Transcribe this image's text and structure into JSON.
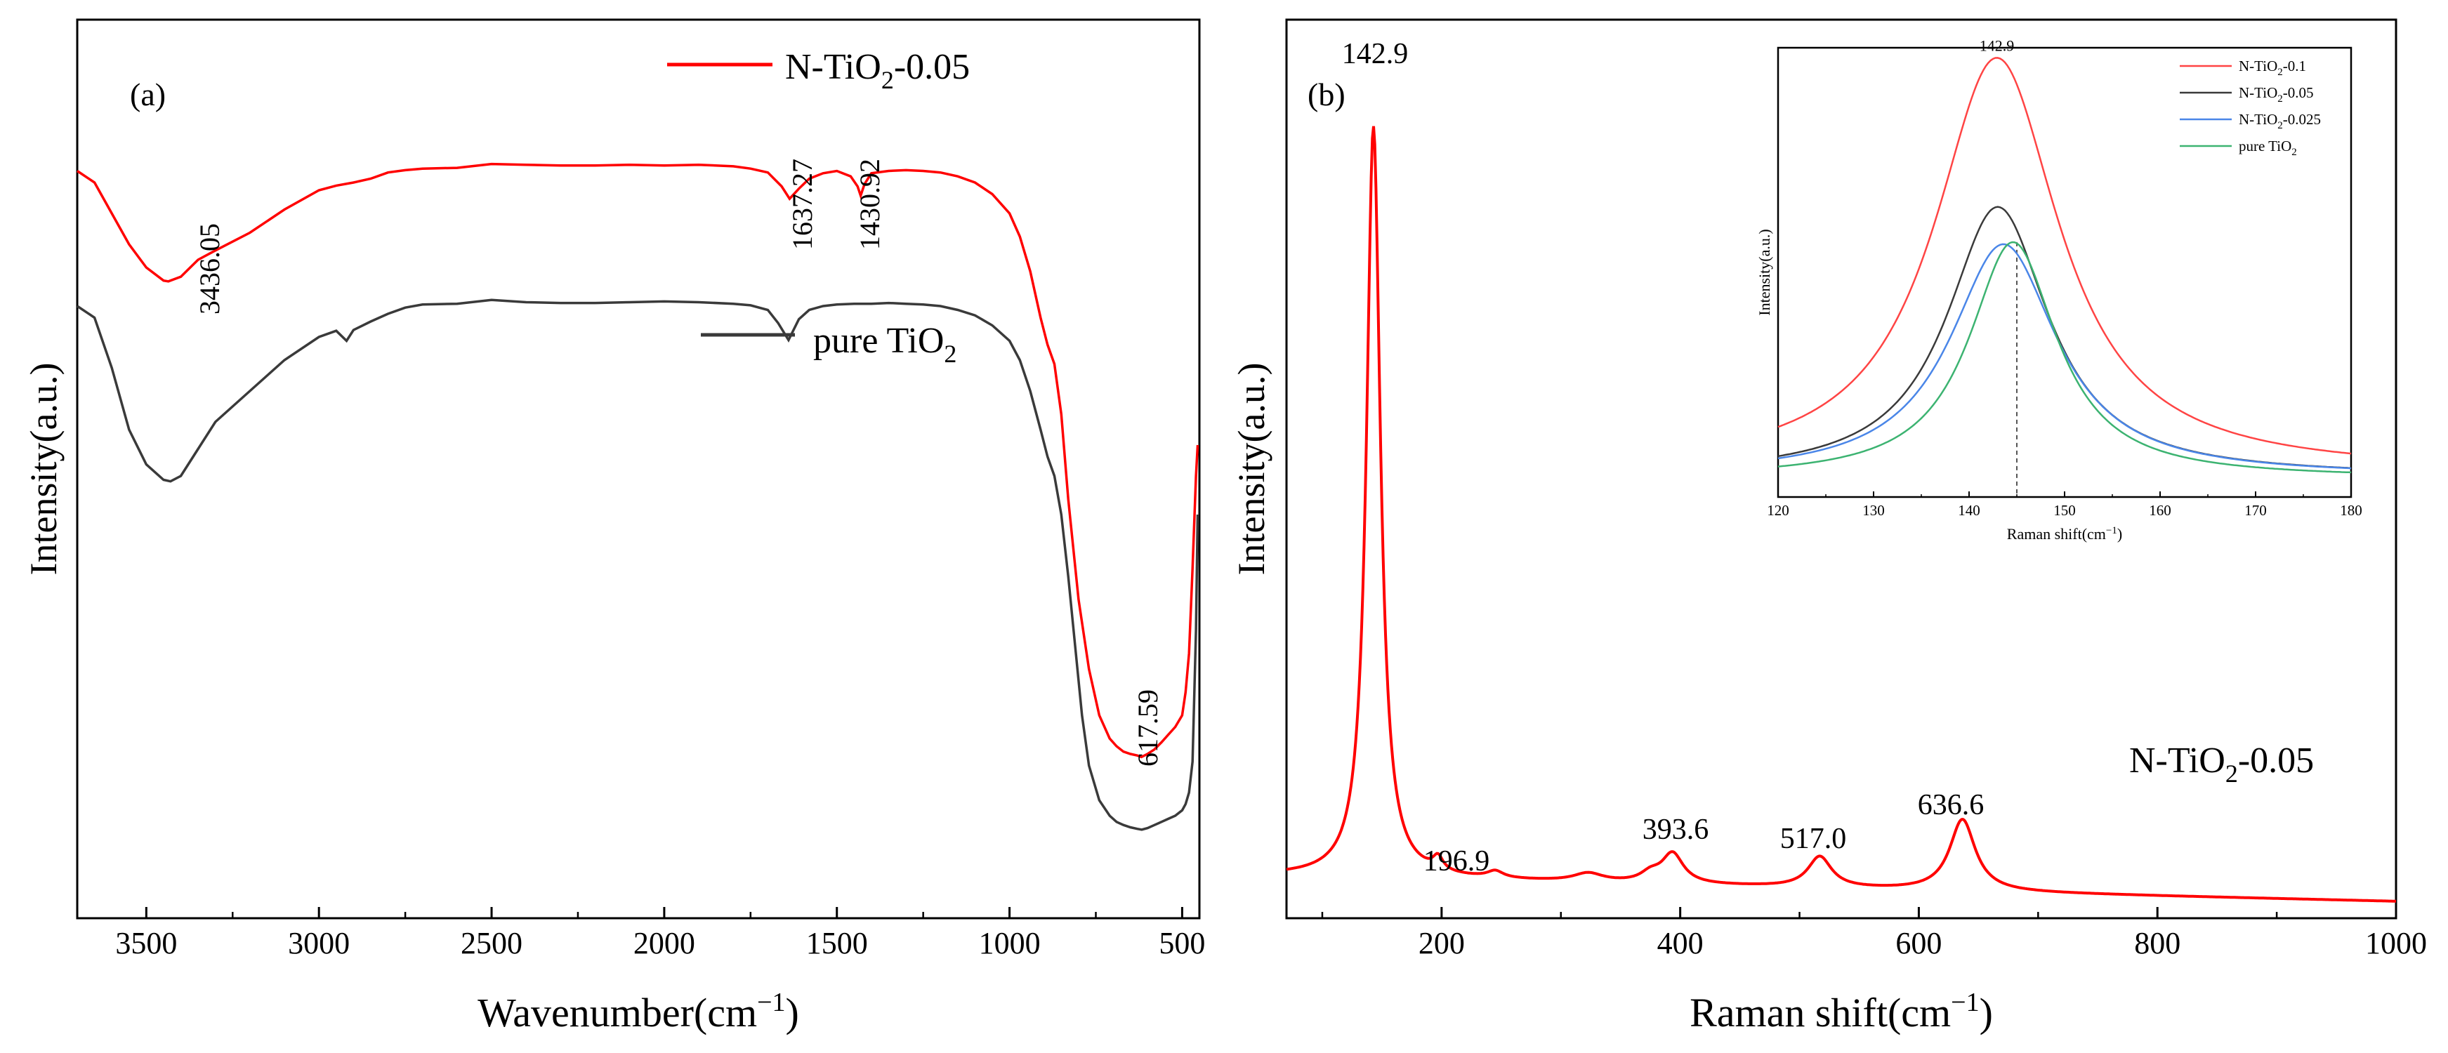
{
  "chart_data": [
    {
      "panel": "(a)",
      "type": "line",
      "title": "",
      "xlabel": "Wavenumber(cm",
      "xlabel_sup": "−1",
      "xlabel_tail": ")",
      "ylabel": "Intensity(a.u.)",
      "xlim": [
        3700,
        450
      ],
      "ylim": [
        0,
        100
      ],
      "xticks": [
        3500,
        3000,
        2500,
        2000,
        1500,
        1000,
        500
      ],
      "yticks_shown": false,
      "series": [
        {
          "name": "N-TiO2-0.05",
          "legend": {
            "main": "N-TiO",
            "sub": "2",
            "tail": "-0.05"
          },
          "color": "#ff0000",
          "x": [
            3700,
            3650,
            3600,
            3550,
            3500,
            3450,
            3436,
            3400,
            3350,
            3300,
            3200,
            3100,
            3000,
            2950,
            2900,
            2850,
            2800,
            2750,
            2700,
            2600,
            2500,
            2400,
            2300,
            2200,
            2100,
            2000,
            1900,
            1800,
            1750,
            1700,
            1660,
            1637,
            1610,
            1580,
            1540,
            1500,
            1460,
            1440,
            1431,
            1420,
            1400,
            1350,
            1300,
            1250,
            1200,
            1150,
            1100,
            1050,
            1000,
            970,
            940,
            910,
            890,
            870,
            850,
            830,
            800,
            770,
            740,
            710,
            690,
            670,
            650,
            630,
            618,
            600,
            580,
            560,
            540,
            520,
            500,
            490,
            480,
            470,
            460,
            455
          ],
          "y": [
            89.5,
            88.0,
            84.0,
            80.0,
            77.0,
            75.3,
            75.2,
            75.8,
            78.0,
            79.2,
            81.5,
            84.5,
            87.0,
            87.6,
            88.0,
            88.5,
            89.3,
            89.6,
            89.8,
            89.9,
            90.4,
            90.3,
            90.2,
            90.2,
            90.3,
            90.2,
            90.3,
            90.1,
            89.8,
            89.3,
            87.5,
            85.9,
            87.2,
            88.5,
            89.2,
            89.5,
            88.8,
            87.5,
            86.3,
            87.8,
            89.2,
            89.5,
            89.6,
            89.5,
            89.3,
            88.8,
            88.0,
            86.5,
            84.0,
            81.0,
            76.5,
            70.5,
            67.0,
            64.5,
            58.0,
            47.0,
            34.0,
            25.0,
            19.0,
            16.0,
            15.0,
            14.3,
            14.0,
            13.8,
            13.6,
            14.0,
            14.6,
            15.5,
            16.5,
            17.5,
            19.0,
            22.0,
            27.0,
            38.0,
            50.0,
            54.0
          ]
        },
        {
          "name": "pure TiO2",
          "legend": {
            "main": "pure TiO",
            "sub": "2",
            "tail": ""
          },
          "color": "#3a3a3a",
          "x": [
            3700,
            3650,
            3600,
            3550,
            3500,
            3450,
            3430,
            3400,
            3350,
            3300,
            3200,
            3100,
            3000,
            2950,
            2920,
            2900,
            2850,
            2800,
            2750,
            2700,
            2600,
            2500,
            2400,
            2300,
            2200,
            2100,
            2000,
            1900,
            1800,
            1750,
            1700,
            1670,
            1640,
            1610,
            1580,
            1540,
            1500,
            1450,
            1400,
            1350,
            1300,
            1250,
            1200,
            1150,
            1100,
            1050,
            1000,
            970,
            940,
            910,
            890,
            870,
            850,
            830,
            810,
            790,
            770,
            740,
            710,
            690,
            670,
            650,
            630,
            617,
            600,
            580,
            560,
            540,
            520,
            500,
            490,
            480,
            470,
            460,
            455
          ],
          "y": [
            72.0,
            70.5,
            64.0,
            56.0,
            51.5,
            49.5,
            49.3,
            50.0,
            53.5,
            57.0,
            61.0,
            65.0,
            68.0,
            68.8,
            67.5,
            68.9,
            70.0,
            71.0,
            71.8,
            72.2,
            72.3,
            72.8,
            72.5,
            72.4,
            72.4,
            72.5,
            72.6,
            72.5,
            72.3,
            72.1,
            71.5,
            69.8,
            67.6,
            70.3,
            71.5,
            72.0,
            72.2,
            72.3,
            72.3,
            72.4,
            72.3,
            72.2,
            72.0,
            71.5,
            70.8,
            69.5,
            67.5,
            65.0,
            61.0,
            56.0,
            52.5,
            50.0,
            45.0,
            37.0,
            28.0,
            19.0,
            12.5,
            8.0,
            6.0,
            5.2,
            4.8,
            4.5,
            4.3,
            4.2,
            4.4,
            4.8,
            5.2,
            5.6,
            6.0,
            6.7,
            7.5,
            9.0,
            13.0,
            30.0,
            45.0
          ]
        }
      ],
      "annotations": [
        "3436.05",
        "1637.27",
        "1430.92",
        "617.59"
      ]
    },
    {
      "panel": "(b)",
      "type": "line",
      "title": "",
      "xlabel": "Raman shift(cm",
      "xlabel_sup": "−1",
      "xlabel_tail": ")",
      "ylabel": "Intensity(a.u.)",
      "xlim": [
        70,
        1000
      ],
      "ylim": [
        0,
        100
      ],
      "xticks": [
        200,
        400,
        600,
        800,
        1000
      ],
      "yticks_shown": false,
      "series": [
        {
          "name": "N-TiO2-0.05",
          "label": {
            "main": "N-TiO",
            "sub": "2",
            "tail": "-0.05"
          },
          "color": "#ff0000",
          "peaks": [
            {
              "center": 142.9,
              "height": 90.0,
              "width": 7
            },
            {
              "center": 196.9,
              "height": 1.6,
              "width": 5
            },
            {
              "center": 245,
              "height": 0.8,
              "width": 8
            },
            {
              "center": 323,
              "height": 1.0,
              "width": 15
            },
            {
              "center": 375,
              "height": 1.0,
              "width": 10
            },
            {
              "center": 393.6,
              "height": 3.6,
              "width": 11
            },
            {
              "center": 517.0,
              "height": 3.7,
              "width": 12
            },
            {
              "center": 636.6,
              "height": 8.6,
              "width": 13
            }
          ],
          "baseline_start": 3.5,
          "baseline_end": 0.5
        }
      ],
      "annotations": [
        "142.9",
        "196.9",
        "393.6",
        "517.0",
        "636.6"
      ]
    },
    {
      "panel": "(b) inset",
      "type": "line",
      "title": "",
      "xlabel": "Raman shift(cm",
      "xlabel_sup": "−1",
      "xlabel_tail": ")",
      "ylabel": "Intensity(a.u.)",
      "xlim": [
        120,
        180
      ],
      "ylim": [
        0,
        100
      ],
      "xticks": [
        120,
        130,
        140,
        150,
        160,
        170,
        180
      ],
      "peak_label": "142.9",
      "dashed_marker_x": 145,
      "series": [
        {
          "name": "N-TiO2-0.1",
          "legend": {
            "main": "N-TiO",
            "sub": "2",
            "tail": "-0.1"
          },
          "color": "#ff4444",
          "center": 142.9,
          "height": 100,
          "width": 8.0,
          "base": 3
        },
        {
          "name": "N-TiO2-0.05",
          "legend": {
            "main": "N-TiO",
            "sub": "2",
            "tail": "-0.05"
          },
          "color": "#3a3a3a",
          "center": 143.0,
          "height": 65,
          "width": 6.5,
          "base": 2
        },
        {
          "name": "N-TiO2-0.025",
          "legend": {
            "main": "N-TiO",
            "sub": "2",
            "tail": "-0.025"
          },
          "color": "#4a86e8",
          "center": 143.6,
          "height": 56,
          "width": 6.8,
          "base": 2
        },
        {
          "name": "pure TiO2",
          "legend": {
            "main": "pure TiO",
            "sub": "2",
            "tail": ""
          },
          "color": "#3cb371",
          "center": 144.6,
          "height": 57,
          "width": 5.6,
          "base": 1.5
        }
      ]
    }
  ]
}
